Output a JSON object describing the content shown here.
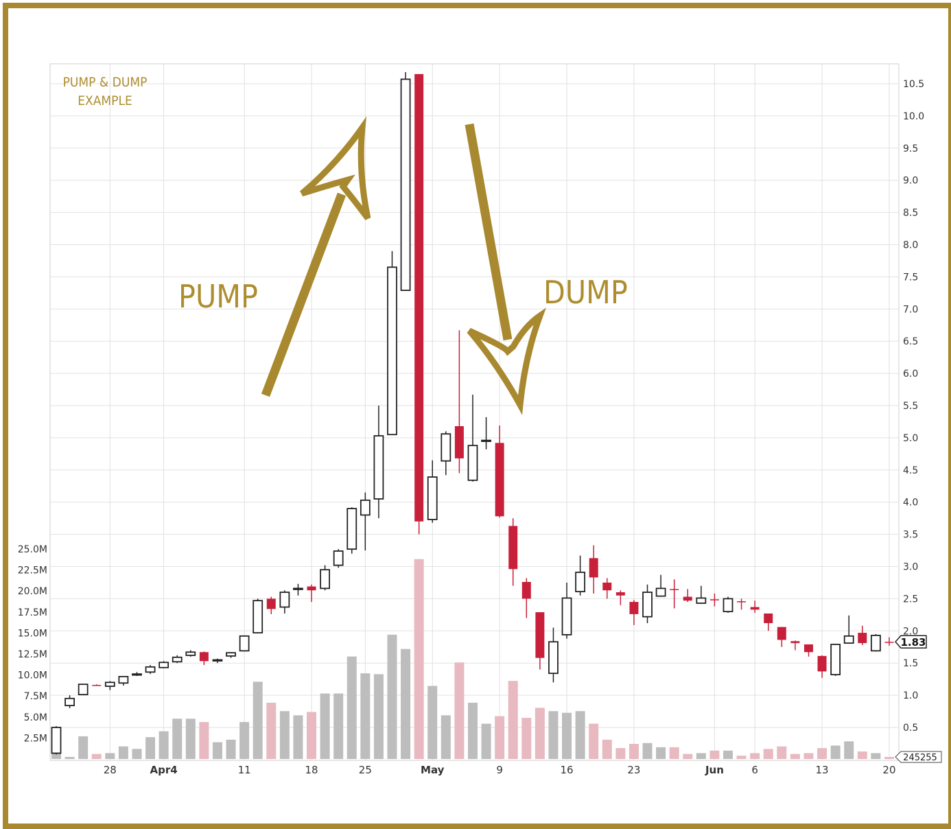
{
  "chart_data": {
    "type": "candlestick",
    "title": "PUMP & DUMP EXAMPLE",
    "annotations": [
      "PUMP",
      "DUMP"
    ],
    "price_axis": {
      "position": "right",
      "range": [
        0.0,
        10.7
      ],
      "ticks": [
        "0.5",
        "1.0",
        "1.5",
        "2.0",
        "2.5",
        "3.0",
        "3.5",
        "4.0",
        "4.5",
        "5.0",
        "5.5",
        "6.0",
        "6.5",
        "7.0",
        "7.5",
        "8.0",
        "8.5",
        "9.0",
        "9.5",
        "10.0",
        "10.5"
      ]
    },
    "volume_axis": {
      "position": "left",
      "unit": "M",
      "ticks": [
        "2.5M",
        "5.0M",
        "7.5M",
        "10.0M",
        "12.5M",
        "15.0M",
        "17.5M",
        "20.0M",
        "22.5M",
        "25.0M"
      ]
    },
    "x_ticks": [
      {
        "label": "28",
        "index": 4,
        "bold": false
      },
      {
        "label": "Apr4",
        "index": 8,
        "bold": true
      },
      {
        "label": "11",
        "index": 14,
        "bold": false
      },
      {
        "label": "18",
        "index": 19,
        "bold": false
      },
      {
        "label": "25",
        "index": 23,
        "bold": false
      },
      {
        "label": "May",
        "index": 28,
        "bold": true
      },
      {
        "label": "9",
        "index": 33,
        "bold": false
      },
      {
        "label": "16",
        "index": 38,
        "bold": false
      },
      {
        "label": "23",
        "index": 43,
        "bold": false
      },
      {
        "label": "Jun",
        "index": 49,
        "bold": true
      },
      {
        "label": "6",
        "index": 52,
        "bold": false
      },
      {
        "label": "13",
        "index": 57,
        "bold": false
      },
      {
        "label": "20",
        "index": 62,
        "bold": false
      }
    ],
    "last_price_label": "1.83",
    "last_volume_label": "245255",
    "grid": true,
    "colors": {
      "up_fill": "#ffffff",
      "up_stroke": "#222222",
      "down": "#c8203a",
      "volume_up": "#bdbdbd",
      "volume_down": "#e8b9c0",
      "annotation": "#a8892f"
    },
    "columns": [
      "open",
      "high",
      "low",
      "close",
      "volume_millions"
    ],
    "candles": [
      [
        0.1,
        0.52,
        0.08,
        0.5,
        0.8
      ],
      [
        0.84,
        1.0,
        0.8,
        0.95,
        0.25
      ],
      [
        1.01,
        1.17,
        1.0,
        1.17,
        2.7
      ],
      [
        1.16,
        1.17,
        1.15,
        1.155,
        0.6
      ],
      [
        1.14,
        1.22,
        1.08,
        1.2,
        0.7
      ],
      [
        1.19,
        1.3,
        1.15,
        1.29,
        1.5
      ],
      [
        1.33,
        1.36,
        1.3,
        1.33,
        1.2
      ],
      [
        1.36,
        1.47,
        1.33,
        1.44,
        2.6
      ],
      [
        1.43,
        1.53,
        1.42,
        1.51,
        3.3
      ],
      [
        1.52,
        1.62,
        1.5,
        1.59,
        4.8
      ],
      [
        1.62,
        1.7,
        1.6,
        1.67,
        4.8
      ],
      [
        1.67,
        1.68,
        1.47,
        1.53,
        4.4
      ],
      [
        1.55,
        1.57,
        1.5,
        1.55,
        2.0
      ],
      [
        1.61,
        1.67,
        1.58,
        1.66,
        2.3
      ],
      [
        1.69,
        1.93,
        1.68,
        1.92,
        4.4
      ],
      [
        1.97,
        2.5,
        1.96,
        2.47,
        9.2
      ],
      [
        2.5,
        2.53,
        2.26,
        2.34,
        6.7
      ],
      [
        2.37,
        2.63,
        2.27,
        2.6,
        5.7
      ],
      [
        2.66,
        2.73,
        2.55,
        2.66,
        5.2
      ],
      [
        2.69,
        2.72,
        2.45,
        2.63,
        5.6
      ],
      [
        2.66,
        3.02,
        2.63,
        2.95,
        7.8
      ],
      [
        3.02,
        3.27,
        2.98,
        3.24,
        7.8
      ],
      [
        3.27,
        3.92,
        3.2,
        3.9,
        12.2
      ],
      [
        3.8,
        4.15,
        3.25,
        4.03,
        10.2
      ],
      [
        4.05,
        5.5,
        3.75,
        5.03,
        10.1
      ],
      [
        5.05,
        7.9,
        5.05,
        7.65,
        14.8
      ],
      [
        7.29,
        10.68,
        7.29,
        10.57,
        13.1
      ],
      [
        10.65,
        10.65,
        3.5,
        3.7,
        23.8
      ],
      [
        3.73,
        4.65,
        3.68,
        4.39,
        8.7
      ],
      [
        4.64,
        5.1,
        4.42,
        5.06,
        5.2
      ],
      [
        5.18,
        6.67,
        4.45,
        4.68,
        11.5
      ],
      [
        4.34,
        5.67,
        4.32,
        4.88,
        6.7
      ],
      [
        4.96,
        5.32,
        4.82,
        4.96,
        4.2
      ],
      [
        4.92,
        5.19,
        3.76,
        3.78,
        5.1
      ],
      [
        3.63,
        3.75,
        2.7,
        2.96,
        9.3
      ],
      [
        2.76,
        2.82,
        2.2,
        2.5,
        4.9
      ],
      [
        2.29,
        2.29,
        1.4,
        1.58,
        6.1
      ],
      [
        1.34,
        2.05,
        1.2,
        1.83,
        5.7
      ],
      [
        1.94,
        2.75,
        1.88,
        2.51,
        5.5
      ],
      [
        2.61,
        3.17,
        2.55,
        2.91,
        5.7
      ],
      [
        3.13,
        3.33,
        2.58,
        2.83,
        4.2
      ],
      [
        2.75,
        2.82,
        2.5,
        2.63,
        2.3
      ],
      [
        2.6,
        2.63,
        2.4,
        2.55,
        1.3
      ],
      [
        2.45,
        2.48,
        2.09,
        2.26,
        1.8
      ],
      [
        2.22,
        2.72,
        2.12,
        2.6,
        1.9
      ],
      [
        2.54,
        2.87,
        2.53,
        2.66,
        1.4
      ],
      [
        2.65,
        2.8,
        2.35,
        2.645,
        1.4
      ],
      [
        2.53,
        2.65,
        2.45,
        2.47,
        0.6
      ],
      [
        2.43,
        2.7,
        2.42,
        2.51,
        0.7
      ],
      [
        2.49,
        2.58,
        2.38,
        2.485,
        1.0
      ],
      [
        2.3,
        2.53,
        2.28,
        2.5,
        1.0
      ],
      [
        2.46,
        2.5,
        2.33,
        2.455,
        0.4
      ],
      [
        2.37,
        2.47,
        2.28,
        2.33,
        0.7
      ],
      [
        2.27,
        2.27,
        2.0,
        2.12,
        1.2
      ],
      [
        2.06,
        2.06,
        1.75,
        1.86,
        1.5
      ],
      [
        1.84,
        1.85,
        1.7,
        1.81,
        0.6
      ],
      [
        1.79,
        1.79,
        1.6,
        1.67,
        0.7
      ],
      [
        1.61,
        1.62,
        1.27,
        1.37,
        1.3
      ],
      [
        1.32,
        1.8,
        1.3,
        1.79,
        1.6
      ],
      [
        1.81,
        2.24,
        1.8,
        1.92,
        2.1
      ],
      [
        1.97,
        2.08,
        1.78,
        1.81,
        0.9
      ],
      [
        1.69,
        1.95,
        1.68,
        1.93,
        0.7
      ],
      [
        1.83,
        1.9,
        1.77,
        1.825,
        0.25
      ]
    ]
  }
}
